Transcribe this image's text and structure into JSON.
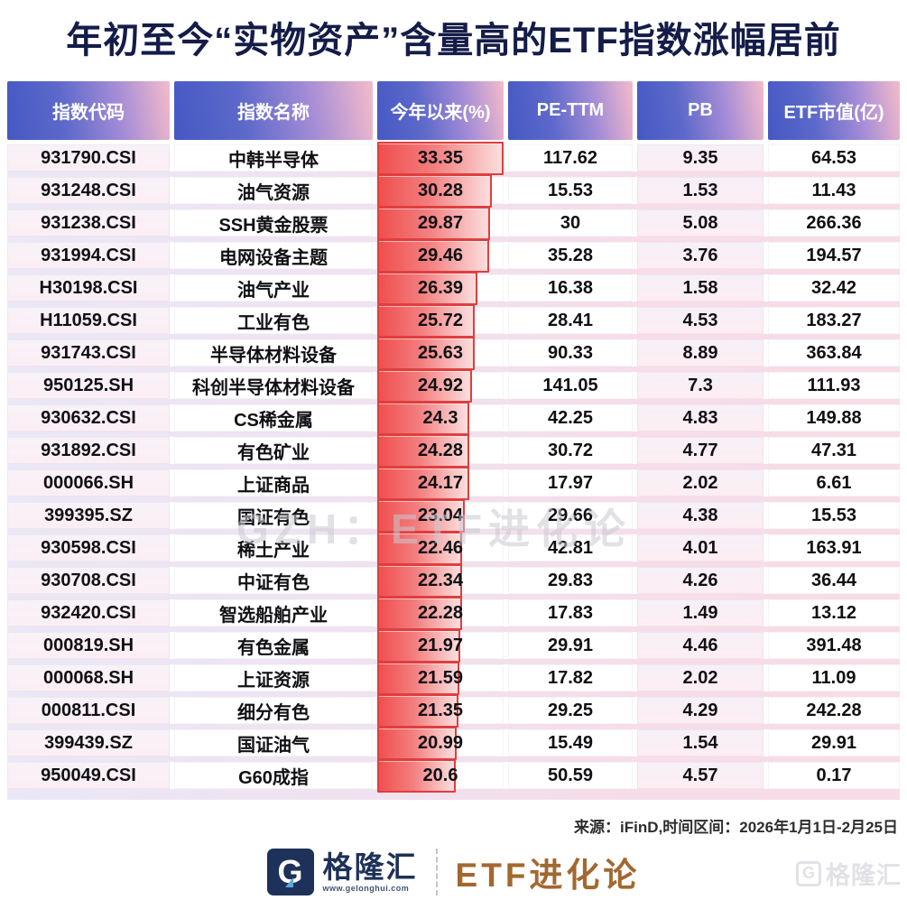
{
  "title": "年初至今“实物资产”含量高的ETF指数涨幅居前",
  "table": {
    "headers": [
      "指数代码",
      "指数名称",
      "今年以来(%)",
      "PE-TTM",
      "PB",
      "ETF市值(亿)"
    ],
    "rows": [
      {
        "code": "931790.CSI",
        "name": "中韩半导体",
        "ytd": "33.35",
        "pe": "117.62",
        "pb": "9.35",
        "mcap": "64.53"
      },
      {
        "code": "931248.CSI",
        "name": "油气资源",
        "ytd": "30.28",
        "pe": "15.53",
        "pb": "1.53",
        "mcap": "11.43"
      },
      {
        "code": "931238.CSI",
        "name": "SSH黄金股票",
        "ytd": "29.87",
        "pe": "30",
        "pb": "5.08",
        "mcap": "266.36"
      },
      {
        "code": "931994.CSI",
        "name": "电网设备主题",
        "ytd": "29.46",
        "pe": "35.28",
        "pb": "3.76",
        "mcap": "194.57"
      },
      {
        "code": "H30198.CSI",
        "name": "油气产业",
        "ytd": "26.39",
        "pe": "16.38",
        "pb": "1.58",
        "mcap": "32.42"
      },
      {
        "code": "H11059.CSI",
        "name": "工业有色",
        "ytd": "25.72",
        "pe": "28.41",
        "pb": "4.53",
        "mcap": "183.27"
      },
      {
        "code": "931743.CSI",
        "name": "半导体材料设备",
        "ytd": "25.63",
        "pe": "90.33",
        "pb": "8.89",
        "mcap": "363.84"
      },
      {
        "code": "950125.SH",
        "name": "科创半导体材料设备",
        "ytd": "24.92",
        "pe": "141.05",
        "pb": "7.3",
        "mcap": "111.93"
      },
      {
        "code": "930632.CSI",
        "name": "CS稀金属",
        "ytd": "24.3",
        "pe": "42.25",
        "pb": "4.83",
        "mcap": "149.88"
      },
      {
        "code": "931892.CSI",
        "name": "有色矿业",
        "ytd": "24.28",
        "pe": "30.72",
        "pb": "4.77",
        "mcap": "47.31"
      },
      {
        "code": "000066.SH",
        "name": "上证商品",
        "ytd": "24.17",
        "pe": "17.97",
        "pb": "2.02",
        "mcap": "6.61"
      },
      {
        "code": "399395.SZ",
        "name": "国证有色",
        "ytd": "23.04",
        "pe": "29.66",
        "pb": "4.38",
        "mcap": "15.53"
      },
      {
        "code": "930598.CSI",
        "name": "稀土产业",
        "ytd": "22.46",
        "pe": "42.81",
        "pb": "4.01",
        "mcap": "163.91"
      },
      {
        "code": "930708.CSI",
        "name": "中证有色",
        "ytd": "22.34",
        "pe": "29.83",
        "pb": "4.26",
        "mcap": "36.44"
      },
      {
        "code": "932420.CSI",
        "name": "智选船舶产业",
        "ytd": "22.28",
        "pe": "17.83",
        "pb": "1.49",
        "mcap": "13.12"
      },
      {
        "code": "000819.SH",
        "name": "有色金属",
        "ytd": "21.97",
        "pe": "29.91",
        "pb": "4.46",
        "mcap": "391.48"
      },
      {
        "code": "000068.SH",
        "name": "上证资源",
        "ytd": "21.59",
        "pe": "17.82",
        "pb": "2.02",
        "mcap": "11.09"
      },
      {
        "code": "000811.CSI",
        "name": "细分有色",
        "ytd": "21.35",
        "pe": "29.25",
        "pb": "4.29",
        "mcap": "242.28"
      },
      {
        "code": "399439.SZ",
        "name": "国证油气",
        "ytd": "20.99",
        "pe": "15.49",
        "pb": "1.54",
        "mcap": "29.91"
      },
      {
        "code": "950049.CSI",
        "name": "G60成指",
        "ytd": "20.6",
        "pe": "50.59",
        "pb": "4.57",
        "mcap": "0.17"
      }
    ]
  },
  "chart_data": {
    "type": "bar",
    "title": "年初至今“实物资产”含量高的ETF指数涨幅居前",
    "categories": [
      "中韩半导体",
      "油气资源",
      "SSH黄金股票",
      "电网设备主题",
      "油气产业",
      "工业有色",
      "半导体材料设备",
      "科创半导体材料设备",
      "CS稀金属",
      "有色矿业",
      "上证商品",
      "国证有色",
      "稀土产业",
      "中证有色",
      "智选船舶产业",
      "有色金属",
      "上证资源",
      "细分有色",
      "国证油气",
      "G60成指"
    ],
    "values": [
      33.35,
      30.28,
      29.87,
      29.46,
      26.39,
      25.72,
      25.63,
      24.92,
      24.3,
      24.28,
      24.17,
      23.04,
      22.46,
      22.34,
      22.28,
      21.97,
      21.59,
      21.35,
      20.99,
      20.6
    ],
    "xlabel": "今年以来(%)",
    "ylabel": "指数名称",
    "xlim": [
      0,
      33.35
    ],
    "legend_position": "none",
    "grid": false
  },
  "footer": {
    "source": "来源：iFinD,时间区间：2026年1月1日-2月25日",
    "brand_g": "G",
    "brand_name": "格隆汇",
    "brand_url": "www.gelonghui.com",
    "brand_series": "ETF进化论"
  },
  "watermarks": {
    "center": "GZH：ETF进化论",
    "corner_g": "G",
    "corner": "格隆汇"
  },
  "colors": {
    "title_navy": "#141c48",
    "header_blue": "#4558c4",
    "header_pink": "#f4bbca",
    "bar_fill_red": "#f04f4f",
    "bar_border_red": "#e03e3e",
    "brand_navy": "#1d3159",
    "brand_bronze": "#a2682f"
  }
}
